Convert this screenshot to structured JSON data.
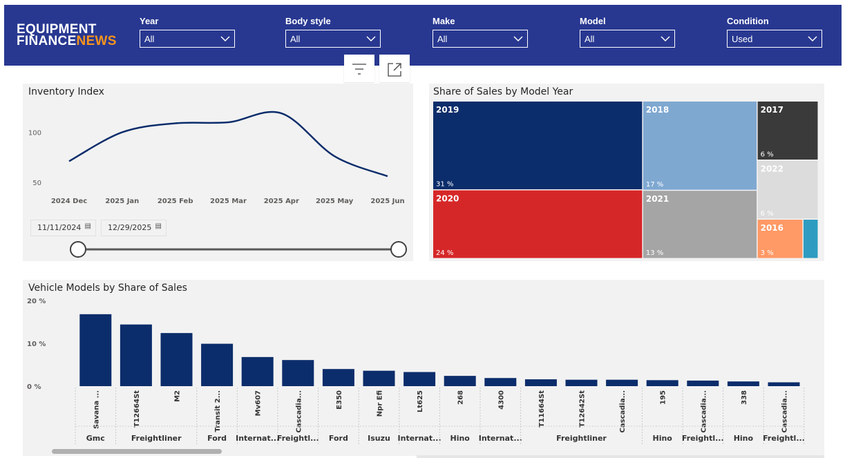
{
  "header": {
    "logo_line1": "EQUIPMENT",
    "logo_line2a": "FINANCE",
    "logo_line2b": "NEWS",
    "filters": [
      {
        "label": "Year",
        "value": "All"
      },
      {
        "label": "Body style",
        "value": "All"
      },
      {
        "label": "Make",
        "value": "All"
      },
      {
        "label": "Model",
        "value": "All"
      },
      {
        "label": "Condition",
        "value": "Used"
      }
    ]
  },
  "toolbar": {
    "filter_icon": "filter-icon",
    "focus_icon": "focus-mode-icon"
  },
  "inventory": {
    "title": "Inventory Index",
    "start_date": "11/11/2024",
    "end_date": "12/29/2025",
    "slider_range": [
      0,
      1
    ]
  },
  "share_year": {
    "title": "Share of Sales by Model Year"
  },
  "models": {
    "title": "Vehicle Models by Share of Sales"
  },
  "chart_data": [
    {
      "type": "line",
      "title": "Inventory Index",
      "categories": [
        "2024 Dec",
        "2025 Jan",
        "2025 Feb",
        "2025 Mar",
        "2025 Apr",
        "2025 May",
        "2025 Jun"
      ],
      "values": [
        71,
        100,
        109,
        110,
        119,
        76,
        56
      ],
      "yticks": [
        50,
        100
      ],
      "ylim": [
        45,
        128
      ],
      "color": "#0c2d6b",
      "grid": false
    },
    {
      "type": "treemap",
      "title": "Share of Sales by Model Year",
      "items": [
        {
          "label": "2019",
          "pct": "31 %",
          "value": 31,
          "color": "#0c2d6b"
        },
        {
          "label": "2020",
          "pct": "24 %",
          "value": 24,
          "color": "#d62728"
        },
        {
          "label": "2018",
          "pct": "17 %",
          "value": 17,
          "color": "#7fa8d1"
        },
        {
          "label": "2021",
          "pct": "13 %",
          "value": 13,
          "color": "#a5a5a5"
        },
        {
          "label": "2017",
          "pct": "6 %",
          "value": 6,
          "color": "#3a3a3a"
        },
        {
          "label": "2022",
          "pct": "6 %",
          "value": 6,
          "color": "#dcdcdc"
        },
        {
          "label": "2016",
          "pct": "3 %",
          "value": 3,
          "color": "#ff9966"
        },
        {
          "label": "",
          "pct": "",
          "value": 1,
          "color": "#2e9cc0"
        }
      ]
    },
    {
      "type": "bar",
      "title": "Vehicle Models by Share of Sales",
      "yticks": [
        "20 %",
        "10 %",
        "0 %"
      ],
      "ylim": [
        0,
        20
      ],
      "color": "#0c2d6b",
      "categories": [
        {
          "model": "Savana ...",
          "make": "Gmc",
          "value": 16.8
        },
        {
          "model": "T12664St",
          "make": "Freightliner",
          "value": 14.4
        },
        {
          "model": "M2",
          "make": "",
          "value": 12.4
        },
        {
          "model": "Transit 2...",
          "make": "Ford",
          "value": 9.9
        },
        {
          "model": "Mv607",
          "make": "Internat...",
          "value": 6.8
        },
        {
          "model": "Cascadia...",
          "make": "Freightl...",
          "value": 6.1
        },
        {
          "model": "E350",
          "make": "Ford",
          "value": 4.0
        },
        {
          "model": "Npr Efi",
          "make": "Isuzu",
          "value": 3.6
        },
        {
          "model": "Lt625",
          "make": "Internat...",
          "value": 3.3
        },
        {
          "model": "268",
          "make": "Hino",
          "value": 2.4
        },
        {
          "model": "4300",
          "make": "Internat...",
          "value": 1.9
        },
        {
          "model": "T11664St",
          "make": "Freightliner",
          "value": 1.6
        },
        {
          "model": "T12642St",
          "make": "",
          "value": 1.5
        },
        {
          "model": "Cascadia...",
          "make": "",
          "value": 1.5
        },
        {
          "model": "195",
          "make": "Hino",
          "value": 1.4
        },
        {
          "model": "Cascadia...",
          "make": "Freightl...",
          "value": 1.3
        },
        {
          "model": "338",
          "make": "Hino",
          "value": 1.1
        },
        {
          "model": "Cascadia...",
          "make": "Freightl...",
          "value": 0.9
        }
      ]
    }
  ]
}
